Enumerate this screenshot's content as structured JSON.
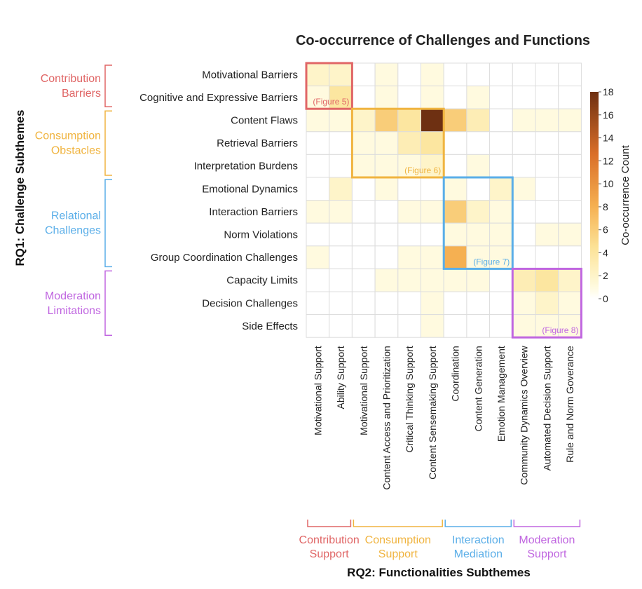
{
  "chart_data": {
    "type": "heatmap",
    "title": "Co-occurrence of Challenges and Functions",
    "ylabel": "RQ1: Challenge Subthemes",
    "xlabel": "RQ2: Functionalities Subthemes",
    "colorbar_label": "Co-occurrence Count",
    "colorbar_ticks": [
      "18",
      "16",
      "14",
      "12",
      "10",
      "8",
      "6",
      "4",
      "2",
      "0"
    ],
    "vmin": 0,
    "vmax": 18,
    "rows": [
      "Motivational Barriers",
      "Cognitive and Expressive Barriers",
      "Content Flaws",
      "Retrieval Barriers",
      "Interpretation Burdens",
      "Emotional Dynamics",
      "Interaction Barriers",
      "Norm Violations",
      "Group Coordination Challenges",
      "Capacity Limits",
      "Decision Challenges",
      "Side Effects"
    ],
    "columns": [
      "Motivational Support",
      "Ability Support",
      "Motivational Support",
      "Content Access and Prioritization",
      "Critical Thinking Support",
      "Content Sensemaking Support",
      "Coordination",
      "Content Generation",
      "Emotion Management",
      "Community Dynamics Overview",
      "Automated Decision Support",
      "Rule and Norm Goverance"
    ],
    "values": [
      [
        2,
        2,
        0,
        1,
        0,
        1,
        0,
        0,
        0,
        0,
        0,
        0
      ],
      [
        1,
        4,
        0,
        1,
        0,
        1,
        0,
        1,
        0,
        0,
        0,
        0
      ],
      [
        1,
        1,
        2,
        6,
        4,
        18,
        6,
        3,
        0,
        1,
        1,
        1
      ],
      [
        0,
        0,
        1,
        1,
        3,
        4,
        0,
        0,
        0,
        0,
        0,
        0
      ],
      [
        0,
        0,
        1,
        1,
        1,
        2,
        0,
        1,
        0,
        0,
        0,
        0
      ],
      [
        0,
        2,
        0,
        1,
        0,
        0,
        1,
        0,
        2,
        1,
        0,
        0
      ],
      [
        1,
        1,
        0,
        0,
        1,
        1,
        6,
        2,
        1,
        0,
        0,
        0
      ],
      [
        0,
        0,
        0,
        0,
        0,
        0,
        1,
        1,
        1,
        0,
        1,
        1
      ],
      [
        1,
        0,
        0,
        0,
        1,
        1,
        8,
        1,
        1,
        0,
        0,
        0
      ],
      [
        0,
        0,
        0,
        1,
        1,
        1,
        1,
        1,
        0,
        3,
        4,
        2
      ],
      [
        0,
        0,
        0,
        0,
        0,
        1,
        0,
        0,
        0,
        1,
        2,
        1
      ],
      [
        0,
        0,
        0,
        0,
        0,
        1,
        0,
        0,
        0,
        1,
        1,
        1
      ]
    ],
    "row_groups": [
      {
        "lines": [
          "Contribution",
          "Barriers"
        ],
        "color": "#e06666"
      },
      {
        "lines": [
          "Consumption",
          "Obstacles"
        ],
        "color": "#f0b440"
      },
      {
        "lines": [
          "Relational",
          "Challenges"
        ],
        "color": "#5aaee8"
      },
      {
        "lines": [
          "Moderation",
          "Limitations"
        ],
        "color": "#c066e0"
      }
    ],
    "column_groups": [
      {
        "lines": [
          "Contribution",
          "Support"
        ],
        "color": "#e06666"
      },
      {
        "lines": [
          "Consumption",
          "Support"
        ],
        "color": "#f0b440"
      },
      {
        "lines": [
          "Interaction",
          "Mediation"
        ],
        "color": "#5aaee8"
      },
      {
        "lines": [
          "Moderation",
          "Support"
        ],
        "color": "#c066e0"
      }
    ],
    "highlight_boxes": [
      {
        "label": "(Figure 5)",
        "color": "#e06666"
      },
      {
        "label": "(Figure 6)",
        "color": "#f0b440"
      },
      {
        "label": "(Figure 7)",
        "color": "#5aaee8"
      },
      {
        "label": "(Figure 8)",
        "color": "#c066e0"
      }
    ]
  }
}
